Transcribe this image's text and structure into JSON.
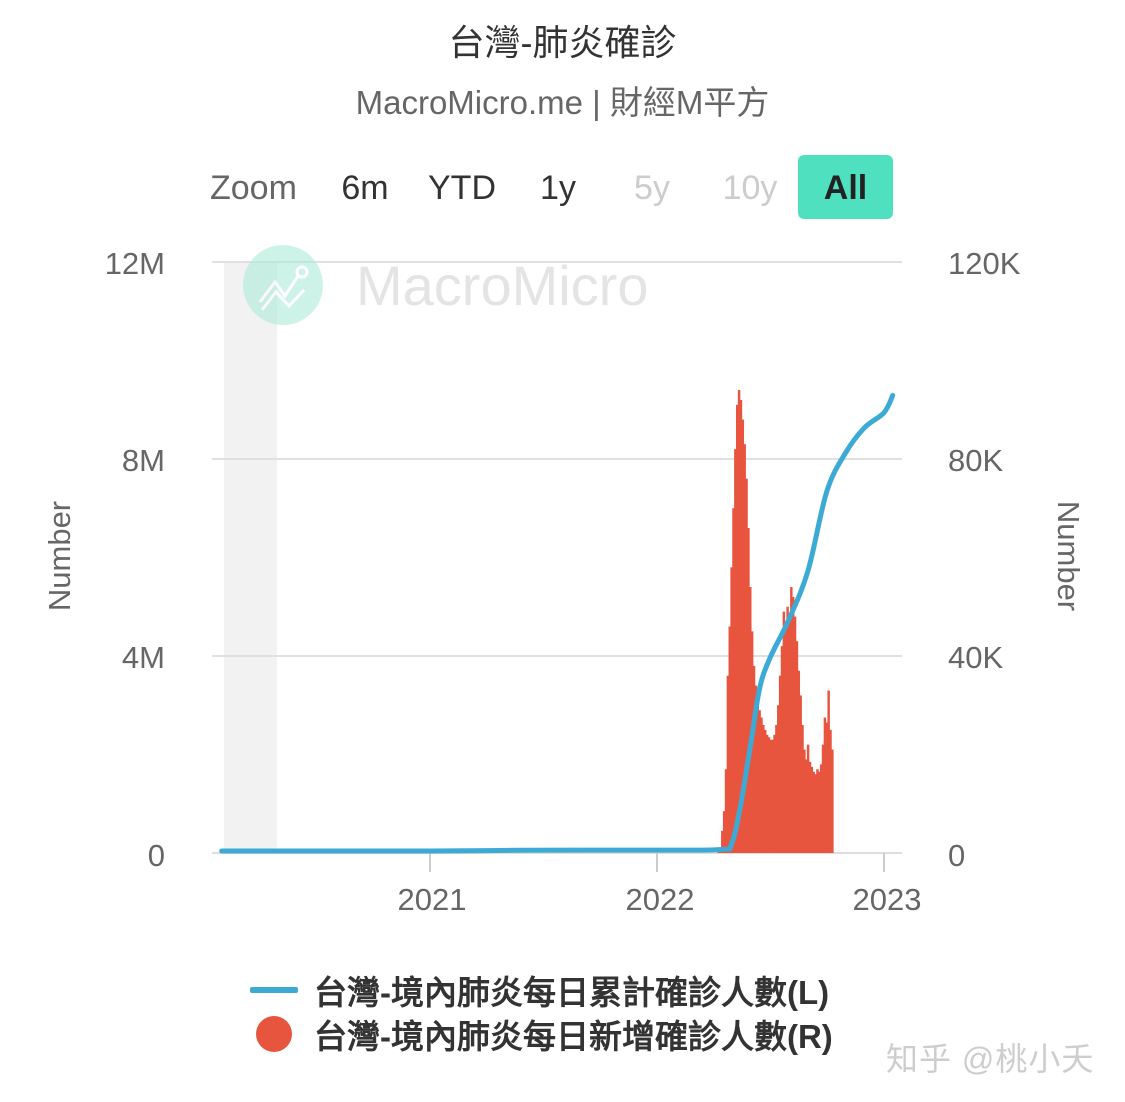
{
  "header": {
    "title": "台灣-肺炎確診",
    "subtitle": "MacroMicro.me | 財經M平方"
  },
  "zoom": {
    "label": "Zoom",
    "buttons": [
      {
        "label": "6m",
        "state": "enabled"
      },
      {
        "label": "YTD",
        "state": "enabled"
      },
      {
        "label": "1y",
        "state": "enabled"
      },
      {
        "label": "5y",
        "state": "disabled"
      },
      {
        "label": "10y",
        "state": "disabled"
      },
      {
        "label": "All",
        "state": "active"
      }
    ]
  },
  "watermark_logo": "MacroMicro",
  "legend": {
    "items": [
      {
        "label": "台灣-境內肺炎每日累計確診人數(L)",
        "color": "#3daad6",
        "symbol": "line"
      },
      {
        "label": "台灣-境內肺炎每日新增確診人數(R)",
        "color": "#e8553e",
        "symbol": "circle"
      }
    ]
  },
  "footer_watermark": "知乎 @桃小夭",
  "colors": {
    "line": "#3daad6",
    "bars": "#e8553e",
    "accent": "#4fe0c0",
    "grid": "#e0e0e0"
  },
  "chart_data": {
    "type": "bar+line",
    "title": "台灣-肺炎確診",
    "subtitle": "MacroMicro.me | 財經M平方",
    "x_ticks": [
      "2021",
      "2022",
      "2023"
    ],
    "x_range": [
      "2020-02",
      "2023-01"
    ],
    "left_axis": {
      "label": "Number",
      "ticks": [
        "0",
        "4M",
        "8M",
        "12M"
      ],
      "range": [
        0,
        12000000
      ]
    },
    "right_axis": {
      "label": "Number",
      "ticks": [
        "0",
        "40K",
        "80K",
        "120K"
      ],
      "range": [
        0,
        120000
      ]
    },
    "grid": true,
    "legend_position": "bottom",
    "shaded_region": {
      "from": "2020-02",
      "to": "2020-05"
    },
    "series": [
      {
        "name": "台灣-境內肺炎每日累計確診人數(L)",
        "type": "line",
        "axis": "left",
        "points": [
          [
            "2020-02",
            0
          ],
          [
            "2021-01",
            0
          ],
          [
            "2021-06",
            15000
          ],
          [
            "2022-01",
            18000
          ],
          [
            "2022-04-15",
            30000
          ],
          [
            "2022-05-01",
            150000
          ],
          [
            "2022-05-15",
            900000
          ],
          [
            "2022-06-01",
            2200000
          ],
          [
            "2022-06-15",
            3300000
          ],
          [
            "2022-07-01",
            3900000
          ],
          [
            "2022-08-01",
            4700000
          ],
          [
            "2022-09-01",
            5700000
          ],
          [
            "2022-10-01",
            7300000
          ],
          [
            "2022-11-01",
            8100000
          ],
          [
            "2022-12-01",
            8600000
          ],
          [
            "2023-01-01",
            8900000
          ],
          [
            "2023-01-15",
            9250000
          ]
        ]
      },
      {
        "name": "台灣-境內肺炎每日新增確診人數(R)",
        "type": "bar",
        "axis": "right",
        "start": "2022-04-08",
        "bin_days": 3,
        "values": [
          500,
          1200,
          4500,
          8500,
          17000,
          36000,
          46000,
          58000,
          70000,
          82000,
          91000,
          94000,
          92000,
          88000,
          83000,
          76000,
          66000,
          54000,
          45000,
          38000,
          34000,
          31000,
          29000,
          27500,
          26000,
          25000,
          24000,
          23500,
          23000,
          23000,
          24000,
          26000,
          30000,
          36000,
          42000,
          49000,
          46000,
          50000,
          48000,
          54000,
          52000,
          48000,
          43000,
          37000,
          32000,
          26000,
          21000,
          19000,
          22000,
          18500,
          17500,
          16500,
          16000,
          17000,
          16500,
          18000,
          22000,
          27500,
          26500,
          33000,
          25000,
          21000
        ]
      }
    ]
  }
}
